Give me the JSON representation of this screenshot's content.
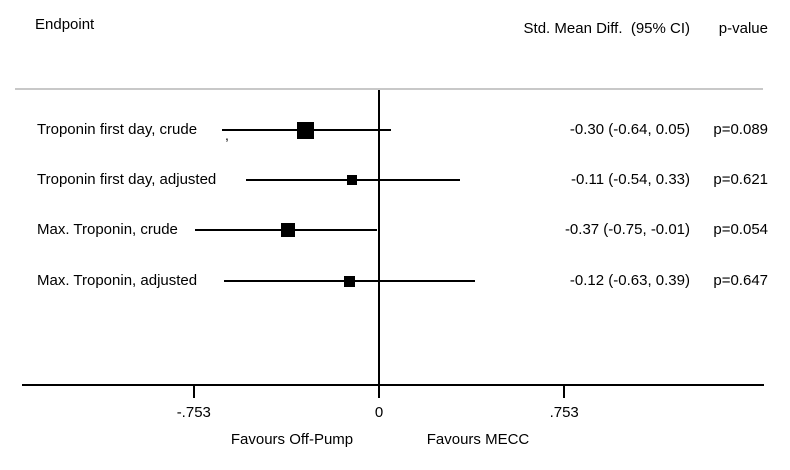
{
  "header": {
    "endpoint": "Endpoint",
    "smd_ci": "Std. Mean Diff.  (95% CI)",
    "pvalue": "p-value"
  },
  "chart_data": {
    "type": "forest",
    "title": "",
    "xlabel": "",
    "x_axis": {
      "ticks": [
        -0.753,
        0,
        0.753
      ],
      "tick_labels": [
        "-.753",
        "0",
        ".753"
      ],
      "xlim": [
        -1.47,
        1.57
      ],
      "favours_left": "Favours Off-Pump",
      "favours_right": "Favours MECC"
    },
    "rows": [
      {
        "label": "Troponin first day, crude",
        "estimate": -0.3,
        "ci_low": -0.64,
        "ci_high": 0.05,
        "display": "-0.30 (-0.64, 0.05)",
        "pvalue": "p=0.089",
        "marker_size": 17
      },
      {
        "label": "Troponin first day, adjusted",
        "estimate": -0.11,
        "ci_low": -0.54,
        "ci_high": 0.33,
        "display": "-0.11 (-0.54, 0.33)",
        "pvalue": "p=0.621",
        "marker_size": 10
      },
      {
        "label": "Max. Troponin, crude",
        "estimate": -0.37,
        "ci_low": -0.75,
        "ci_high": -0.01,
        "display": "-0.37 (-0.75, -0.01)",
        "pvalue": "p=0.054",
        "marker_size": 14
      },
      {
        "label": "Max. Troponin, adjusted",
        "estimate": -0.12,
        "ci_low": -0.63,
        "ci_high": 0.39,
        "display": "-0.12 (-0.63, 0.39)",
        "pvalue": "p=0.647",
        "marker_size": 11
      }
    ],
    "stray_mark": ","
  }
}
